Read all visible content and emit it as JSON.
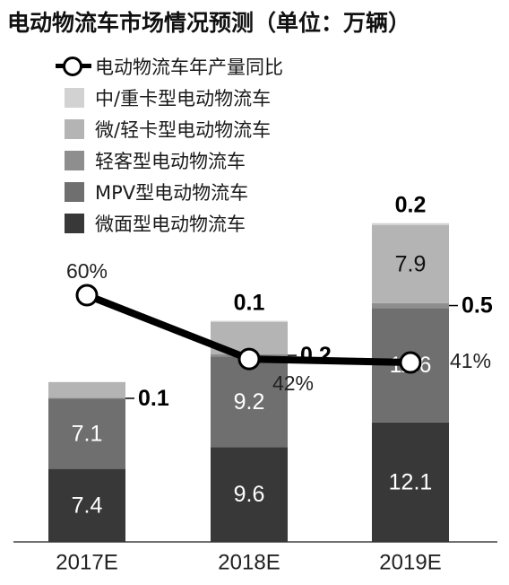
{
  "title": "电动物流车市场情况预测（单位：万辆）",
  "chart_data": {
    "type": "bar",
    "stacked": true,
    "categories": [
      "2017E",
      "2018E",
      "2019E"
    ],
    "series": [
      {
        "name": "微面型电动物流车",
        "values": [
          7.4,
          9.6,
          12.1
        ],
        "labels": [
          "7.4",
          "9.6",
          "12.1"
        ],
        "color": "#383838"
      },
      {
        "name": "MPV型电动物流车",
        "values": [
          7.1,
          9.2,
          11.6
        ],
        "labels": [
          "7.1",
          "9.2",
          "11.6"
        ],
        "color": "#6f6f6f"
      },
      {
        "name": "轻客型电动物流车",
        "values": [
          0.1,
          0.2,
          0.5
        ],
        "labels": [
          "0.1",
          "0.2",
          "0.5"
        ],
        "color": "#8e8e8e"
      },
      {
        "name": "微/轻卡型电动物流车",
        "values": [
          1.6,
          3.3,
          7.9
        ],
        "labels": [
          "1.6",
          "",
          "7.9"
        ],
        "color": "#b4b4b4"
      },
      {
        "name": "中/重卡型电动物流车",
        "values": [
          0,
          0.1,
          0.2
        ],
        "labels": [
          "",
          "0.1",
          "0.2"
        ],
        "color": "#d2d2d2"
      }
    ],
    "line": {
      "name": "电动物流车年产量同比",
      "values": [
        60,
        42,
        41
      ],
      "labels": [
        "60%",
        "42%",
        "41%"
      ]
    },
    "legend_position": "top-left",
    "grid": false
  }
}
